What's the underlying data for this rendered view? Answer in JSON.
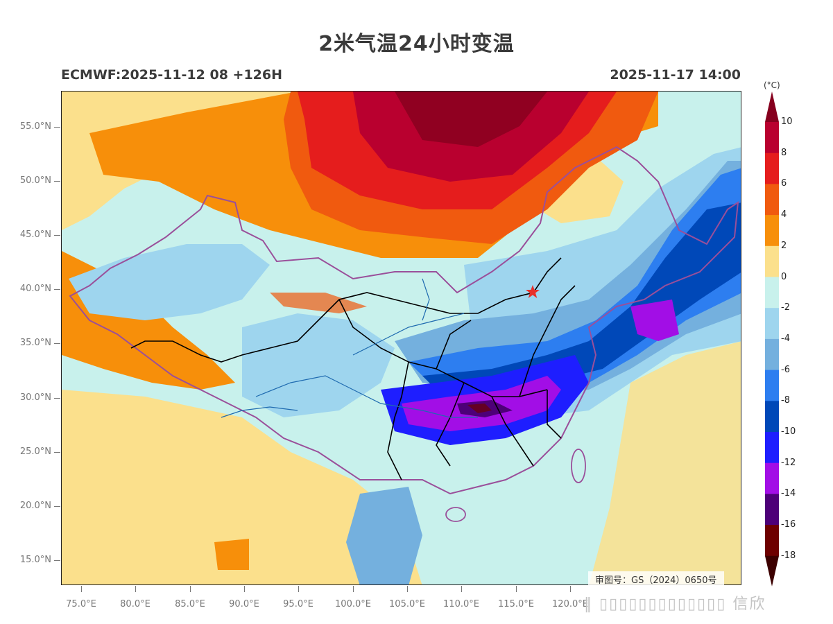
{
  "title": "2米气温24小时变温",
  "subtitle_left": "ECMWF:2025-11-12 08 +126H",
  "subtitle_right": "2025-11-17 14:00",
  "map": {
    "lat_labels": [
      "55.0°N",
      "50.0°N",
      "45.0°N",
      "40.0°N",
      "35.0°N",
      "30.0°N",
      "25.0°N",
      "20.0°N",
      "15.0°N"
    ],
    "lon_labels": [
      "75.0°E",
      "80.0°E",
      "85.0°E",
      "90.0°E",
      "95.0°E",
      "100.0°E",
      "105.0°E",
      "110.0°E",
      "115.0°E",
      "120.0°E"
    ],
    "approval_text": "审图号：GS（2024）0650号",
    "marker_icon": "star-icon",
    "marker_color": "#e8302a"
  },
  "colorbar": {
    "unit": "(°C)",
    "labels": [
      "10",
      "8",
      "6",
      "4",
      "2",
      "0",
      "-2",
      "-4",
      "-6",
      "-8",
      "-10",
      "-12",
      "-14",
      "-16",
      "-18"
    ],
    "colors": [
      "#b9002f",
      "#e51d1d",
      "#f05a0f",
      "#f78f0a",
      "#fbe08c",
      "#c8f1ec",
      "#9ed5ee",
      "#74b0de",
      "#2d7ef0",
      "#0048b8",
      "#1e1eff",
      "#a20ee6",
      "#4d0078",
      "#6e0000"
    ],
    "top_arrow_color": "#86001e",
    "bottom_arrow_color": "#3c0000"
  },
  "watermark": "‖ ▯▯▯▯▯▯▯▯▯▯▯▯▯ 信欣"
}
